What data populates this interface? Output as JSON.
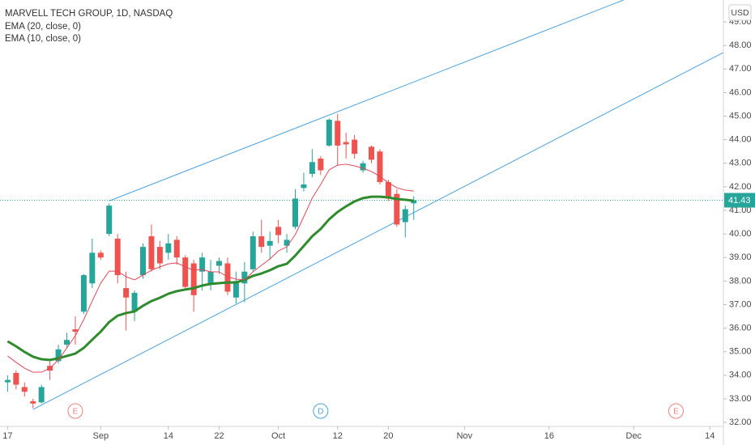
{
  "chart_data": {
    "type": "candlestick",
    "title": "MARVELL TECH GROUP, 1D, NASDAQ",
    "currency": "USD",
    "x": [
      0,
      1,
      2,
      3,
      4,
      5,
      6,
      7,
      8,
      9,
      10,
      11,
      12,
      13,
      14,
      15,
      16,
      17,
      18,
      19,
      20,
      21,
      22,
      23,
      24,
      25,
      26,
      27,
      28,
      29,
      30,
      31,
      32,
      33,
      34,
      35,
      36,
      37,
      38,
      39,
      40,
      41,
      42,
      43,
      44,
      45,
      46,
      47,
      48
    ],
    "open": [
      33.7,
      34.1,
      33.5,
      32.9,
      32.85,
      34.4,
      34.6,
      35.3,
      35.95,
      36.7,
      37.9,
      39.2,
      40.0,
      39.8,
      37.7,
      36.7,
      38.25,
      39.9,
      39.45,
      39.2,
      39.75,
      39.0,
      38.75,
      38.4,
      37.9,
      38.65,
      38.75,
      37.3,
      37.9,
      38.5,
      39.9,
      39.5,
      40.3,
      39.5,
      40.3,
      41.95,
      42.55,
      43.2,
      43.75,
      44.8,
      43.9,
      44.0,
      42.7,
      43.7,
      43.5,
      42.2,
      41.7,
      40.5,
      41.3
    ],
    "high": [
      34.0,
      34.2,
      33.7,
      33.0,
      33.6,
      34.6,
      35.3,
      35.8,
      36.5,
      38.3,
      39.8,
      39.3,
      41.3,
      40.0,
      38.4,
      37.6,
      39.6,
      40.4,
      39.7,
      40.0,
      39.9,
      39.1,
      38.9,
      39.2,
      38.9,
      39.0,
      39.0,
      38.4,
      38.8,
      40.1,
      40.6,
      40.1,
      40.6,
      40.0,
      41.9,
      42.6,
      43.6,
      43.3,
      44.9,
      45.1,
      44.3,
      44.2,
      43.1,
      43.75,
      43.6,
      42.3,
      41.9,
      41.2,
      41.6
    ],
    "low": [
      33.3,
      33.4,
      33.1,
      32.6,
      32.8,
      33.8,
      34.5,
      35.2,
      35.3,
      36.6,
      37.7,
      38.9,
      39.9,
      37.9,
      35.9,
      36.3,
      38.1,
      38.4,
      38.5,
      38.9,
      38.7,
      37.6,
      36.7,
      37.6,
      37.6,
      38.3,
      37.4,
      37.05,
      37.1,
      38.4,
      39.2,
      38.9,
      39.6,
      39.2,
      40.2,
      41.8,
      42.4,
      42.5,
      43.7,
      42.9,
      43.2,
      43.2,
      42.6,
      43.0,
      42.1,
      41.4,
      40.3,
      39.85,
      40.6
    ],
    "close": [
      33.8,
      33.6,
      33.3,
      32.8,
      33.5,
      34.2,
      35.1,
      35.5,
      35.85,
      38.25,
      39.2,
      39.0,
      41.2,
      38.25,
      37.3,
      37.5,
      39.45,
      38.5,
      38.75,
      39.6,
      39.0,
      37.75,
      37.4,
      39.0,
      38.4,
      38.85,
      37.55,
      38.0,
      38.4,
      39.9,
      39.45,
      39.7,
      39.95,
      39.75,
      41.5,
      42.1,
      43.05,
      42.7,
      44.85,
      43.75,
      43.8,
      43.4,
      43.0,
      43.15,
      42.2,
      41.5,
      40.4,
      41.05,
      41.43
    ],
    "up_color": "#26a69a",
    "down_color": "#ef5350",
    "series": [
      {
        "name": "EMA (20, close, 0)",
        "color": "#2e8b2e",
        "width": 3,
        "values": [
          35.44,
          35.23,
          34.99,
          34.79,
          34.68,
          34.65,
          34.72,
          34.82,
          34.92,
          35.16,
          35.51,
          35.85,
          36.26,
          36.53,
          36.64,
          36.71,
          36.95,
          37.15,
          37.29,
          37.46,
          37.57,
          37.64,
          37.7,
          37.81,
          37.88,
          37.91,
          37.94,
          37.94,
          38.05,
          38.22,
          38.32,
          38.46,
          38.63,
          38.73,
          39.08,
          39.49,
          39.9,
          40.21,
          40.62,
          40.93,
          41.17,
          41.38,
          41.52,
          41.58,
          41.58,
          41.55,
          41.48,
          41.45,
          41.41
        ]
      },
      {
        "name": "EMA (10, close, 0)",
        "color": "#e2485a",
        "width": 1,
        "values": [
          34.82,
          34.55,
          34.3,
          34.13,
          34.13,
          34.3,
          34.65,
          35.16,
          35.68,
          36.36,
          37.15,
          37.91,
          38.42,
          38.42,
          38.18,
          38.05,
          38.25,
          38.46,
          38.6,
          38.73,
          38.77,
          38.6,
          38.46,
          38.49,
          38.39,
          38.39,
          38.18,
          38.08,
          38.05,
          38.39,
          38.67,
          38.94,
          39.28,
          39.45,
          39.97,
          40.73,
          41.52,
          42.1,
          42.72,
          42.92,
          42.96,
          42.89,
          42.79,
          42.65,
          42.44,
          42.17,
          41.96,
          41.86,
          41.82
        ]
      }
    ],
    "trend_lines": [
      {
        "color": "#4aa3df",
        "points": [
          [
            12,
            41.4
          ],
          [
            72.8,
            49.93
          ]
        ]
      },
      {
        "color": "#4aa3df",
        "points": [
          [
            3,
            32.55
          ],
          [
            84.6,
            47.7
          ]
        ]
      }
    ],
    "last_price": 41.43,
    "events": [
      {
        "x": 8,
        "label": "E",
        "color": "#f08080"
      },
      {
        "x": 37,
        "label": "D",
        "color": "#4aa3df"
      },
      {
        "x": 79,
        "label": "E",
        "color": "#f08080"
      }
    ],
    "xlim": [
      -0.9,
      84.6
    ],
    "xticks": [
      {
        "value": 0,
        "label": "17"
      },
      {
        "value": 11,
        "label": "Sep"
      },
      {
        "value": 19,
        "label": "14"
      },
      {
        "value": 25,
        "label": "22"
      },
      {
        "value": 32,
        "label": "Oct"
      },
      {
        "value": 39,
        "label": "12"
      },
      {
        "value": 45,
        "label": "20"
      },
      {
        "value": 54,
        "label": "Nov"
      },
      {
        "value": 64,
        "label": "16"
      },
      {
        "value": 74,
        "label": "Dec"
      },
      {
        "value": 83,
        "label": "14"
      }
    ],
    "ylim": [
      31.83,
      49.93
    ],
    "yticks": [
      {
        "value": 32,
        "label": "32.00"
      },
      {
        "value": 33,
        "label": "33.00"
      },
      {
        "value": 34,
        "label": "34.00"
      },
      {
        "value": 35,
        "label": "35.00"
      },
      {
        "value": 36,
        "label": "36.00"
      },
      {
        "value": 37,
        "label": "37.00"
      },
      {
        "value": 38,
        "label": "38.00"
      },
      {
        "value": 39,
        "label": "39.00"
      },
      {
        "value": 40,
        "label": "40.00"
      },
      {
        "value": 41,
        "label": "41.00"
      },
      {
        "value": 42,
        "label": "42.00"
      },
      {
        "value": 43,
        "label": "43.00"
      },
      {
        "value": 44,
        "label": "44.00"
      },
      {
        "value": 45,
        "label": "45.00"
      },
      {
        "value": 46,
        "label": "46.00"
      },
      {
        "value": 47,
        "label": "47.00"
      },
      {
        "value": 48,
        "label": "48.00"
      },
      {
        "value": 49,
        "label": "49.00"
      }
    ],
    "grid": false
  }
}
